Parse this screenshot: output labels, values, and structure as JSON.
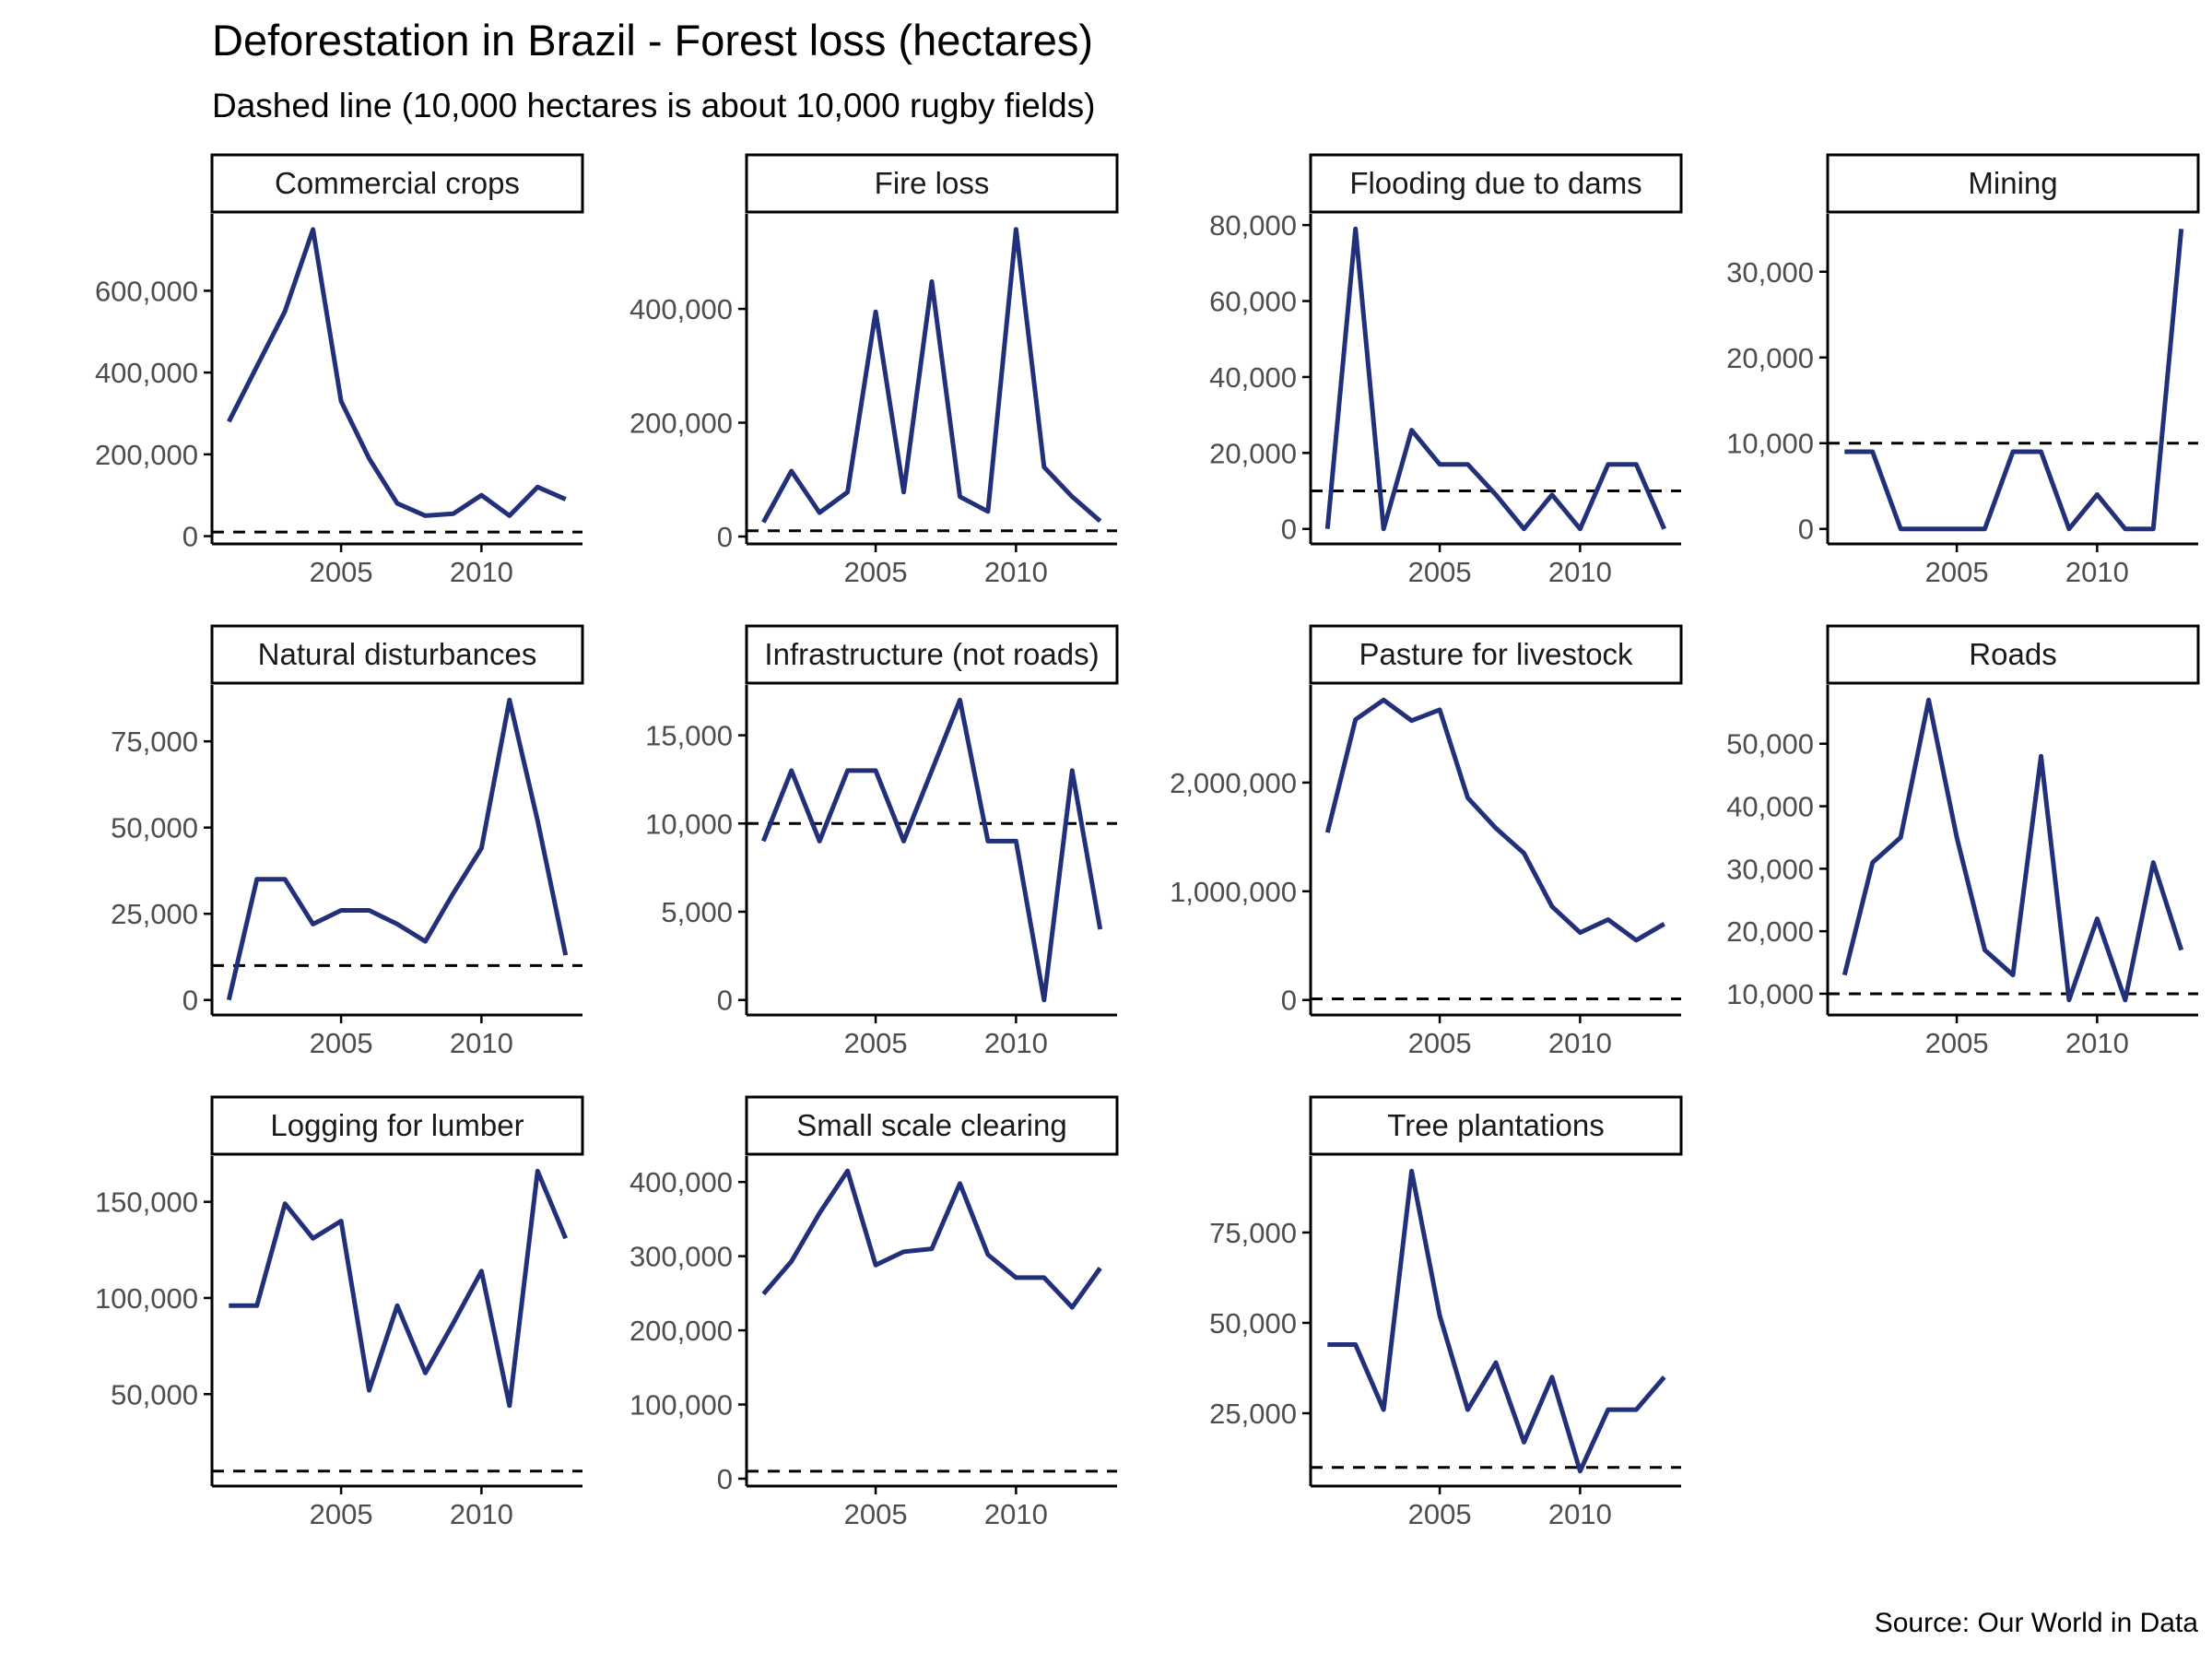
{
  "title": "Deforestation in Brazil - Forest loss (hectares)",
  "subtitle": "Dashed line (10,000 hectares is about 10,000 rugby fields)",
  "caption": "Source: Our World in Data",
  "colors": {
    "line": "#22307a",
    "axis": "#000000",
    "reference": "#000000",
    "background": "#ffffff"
  },
  "chart_data": {
    "type": "line",
    "layout": "faceted small multiples, 3 rows x 4 columns, free y scales, shared x axis",
    "grid": false,
    "x": [
      2001,
      2002,
      2003,
      2004,
      2005,
      2006,
      2007,
      2008,
      2009,
      2010,
      2011,
      2012,
      2013
    ],
    "x_ticks": [
      2005,
      2010
    ],
    "reference_line": {
      "y": 10000,
      "style": "dashed"
    },
    "panels": [
      {
        "name": "Commercial crops",
        "values": [
          280000,
          415000,
          550000,
          750000,
          330000,
          190000,
          80000,
          50000,
          55000,
          100000,
          50000,
          120000,
          90000
        ],
        "y_ticks": [
          0,
          200000,
          400000,
          600000
        ],
        "y_tick_labels": [
          "0",
          "200,000",
          "400,000",
          "600,000"
        ],
        "ylim": [
          -19000,
          788000
        ]
      },
      {
        "name": "Fire loss",
        "values": [
          25000,
          115000,
          42000,
          78000,
          395000,
          78000,
          448000,
          70000,
          44000,
          540000,
          122000,
          70000,
          27000
        ],
        "y_ticks": [
          0,
          200000,
          400000
        ],
        "y_tick_labels": [
          "0",
          "200,000",
          "400,000"
        ],
        "ylim": [
          -13000,
          567000
        ]
      },
      {
        "name": "Flooding due to dams",
        "values": [
          0,
          79000,
          0,
          26000,
          17000,
          17000,
          9000,
          0,
          9000,
          0,
          17000,
          17000,
          0
        ],
        "y_ticks": [
          0,
          20000,
          40000,
          60000,
          80000
        ],
        "y_tick_labels": [
          "0",
          "20,000",
          "40,000",
          "60,000",
          "80,000"
        ],
        "ylim": [
          -3950,
          82950
        ]
      },
      {
        "name": "Mining",
        "values": [
          9000,
          9000,
          0,
          0,
          0,
          0,
          9000,
          9000,
          0,
          4000,
          0,
          0,
          35000
        ],
        "y_ticks": [
          0,
          10000,
          20000,
          30000
        ],
        "y_tick_labels": [
          "0",
          "10,000",
          "20,000",
          "30,000"
        ],
        "ylim": [
          -1750,
          36750
        ]
      },
      {
        "name": "Natural disturbances",
        "values": [
          0,
          35000,
          35000,
          22000,
          26000,
          26000,
          22000,
          17000,
          31000,
          44000,
          87000,
          52000,
          13000
        ],
        "y_ticks": [
          0,
          25000,
          50000,
          75000
        ],
        "y_tick_labels": [
          "0",
          "25,000",
          "50,000",
          "75,000"
        ],
        "ylim": [
          -4350,
          91350
        ]
      },
      {
        "name": "Infrastructure (not roads)",
        "values": [
          9000,
          13000,
          9000,
          13000,
          13000,
          9000,
          13000,
          17000,
          9000,
          9000,
          0,
          13000,
          4000
        ],
        "y_ticks": [
          0,
          5000,
          10000,
          15000
        ],
        "y_tick_labels": [
          "0",
          "5,000",
          "10,000",
          "15,000"
        ],
        "ylim": [
          -850,
          17850
        ]
      },
      {
        "name": "Pasture for livestock",
        "values": [
          1540000,
          2580000,
          2760000,
          2570000,
          2670000,
          1860000,
          1580000,
          1350000,
          860000,
          620000,
          740000,
          550000,
          700000
        ],
        "y_ticks": [
          0,
          1000000,
          2000000
        ],
        "y_tick_labels": [
          "0",
          "1,000,000",
          "2,000,000"
        ],
        "ylim": [
          -138000,
          2898000
        ]
      },
      {
        "name": "Roads",
        "values": [
          13000,
          31000,
          35000,
          57000,
          35000,
          17000,
          13000,
          48000,
          9000,
          22000,
          9000,
          31000,
          17000
        ],
        "y_ticks": [
          10000,
          20000,
          30000,
          40000,
          50000
        ],
        "y_tick_labels": [
          "10,000",
          "20,000",
          "30,000",
          "40,000",
          "50,000"
        ],
        "ylim": [
          6600,
          59400
        ]
      },
      {
        "name": "Logging for lumber",
        "values": [
          96000,
          96000,
          149000,
          131000,
          140000,
          52000,
          96000,
          61000,
          87000,
          114000,
          44000,
          166000,
          131000
        ],
        "y_ticks": [
          50000,
          100000,
          150000
        ],
        "y_tick_labels": [
          "50,000",
          "100,000",
          "150,000"
        ],
        "ylim": [
          2200,
          173800
        ]
      },
      {
        "name": "Small scale clearing",
        "values": [
          249000,
          293000,
          358000,
          415000,
          288000,
          306000,
          310000,
          398000,
          302000,
          271000,
          271000,
          231000,
          284000
        ],
        "y_ticks": [
          0,
          100000,
          200000,
          300000,
          400000
        ],
        "y_tick_labels": [
          "0",
          "100,000",
          "200,000",
          "300,000",
          "400,000"
        ],
        "ylim": [
          -10000,
          435000
        ]
      },
      {
        "name": "Tree plantations",
        "values": [
          44000,
          44000,
          26000,
          92000,
          52000,
          26000,
          39000,
          17000,
          35000,
          9000,
          26000,
          26000,
          35000
        ],
        "y_ticks": [
          25000,
          50000,
          75000
        ],
        "y_tick_labels": [
          "25,000",
          "50,000",
          "75,000"
        ],
        "ylim": [
          4850,
          96150
        ]
      }
    ]
  }
}
